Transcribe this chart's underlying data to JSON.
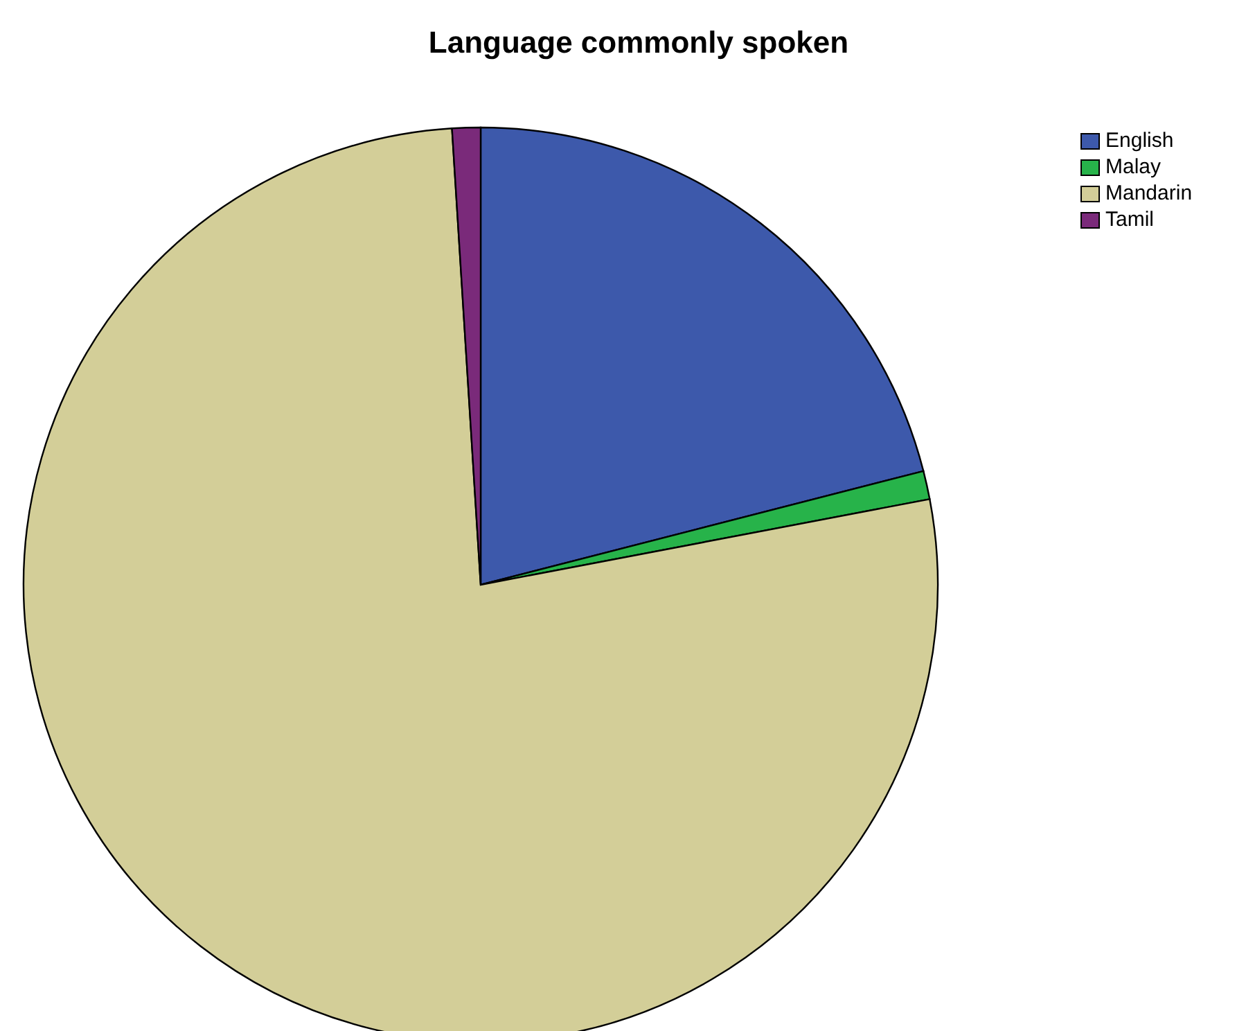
{
  "chart_data": {
    "type": "pie",
    "title": "Language commonly spoken",
    "categories": [
      "English",
      "Malay",
      "Mandarin",
      "Tamil"
    ],
    "values": [
      21,
      1,
      77,
      1
    ],
    "colors": [
      "#3d59ab",
      "#27b34a",
      "#d3ce98",
      "#7a2a7a"
    ],
    "legend": "top right"
  }
}
